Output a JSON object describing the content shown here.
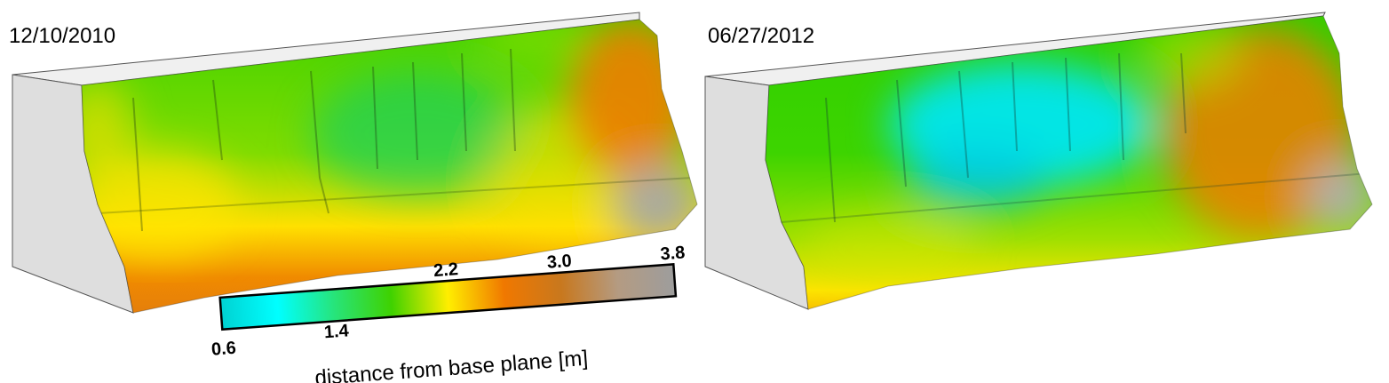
{
  "panels": [
    {
      "date": "12/10/2010"
    },
    {
      "date": "06/27/2012"
    }
  ],
  "colorbar": {
    "title": "distance from base plane [m]",
    "ticks": [
      "0.6",
      "1.4",
      "2.2",
      "3.0",
      "3.8"
    ],
    "range": [
      0.6,
      3.8
    ],
    "stops": [
      {
        "value": 0.6,
        "color": "#00d2d2"
      },
      {
        "value": 1.0,
        "color": "#00ffff"
      },
      {
        "value": 1.4,
        "color": "#27e47a"
      },
      {
        "value": 1.8,
        "color": "#3fd200"
      },
      {
        "value": 2.2,
        "color": "#ffee00"
      },
      {
        "value": 2.6,
        "color": "#f07800"
      },
      {
        "value": 3.0,
        "color": "#c8781e"
      },
      {
        "value": 3.4,
        "color": "#b49b82"
      },
      {
        "value": 3.8,
        "color": "#9d9d9d"
      }
    ]
  }
}
